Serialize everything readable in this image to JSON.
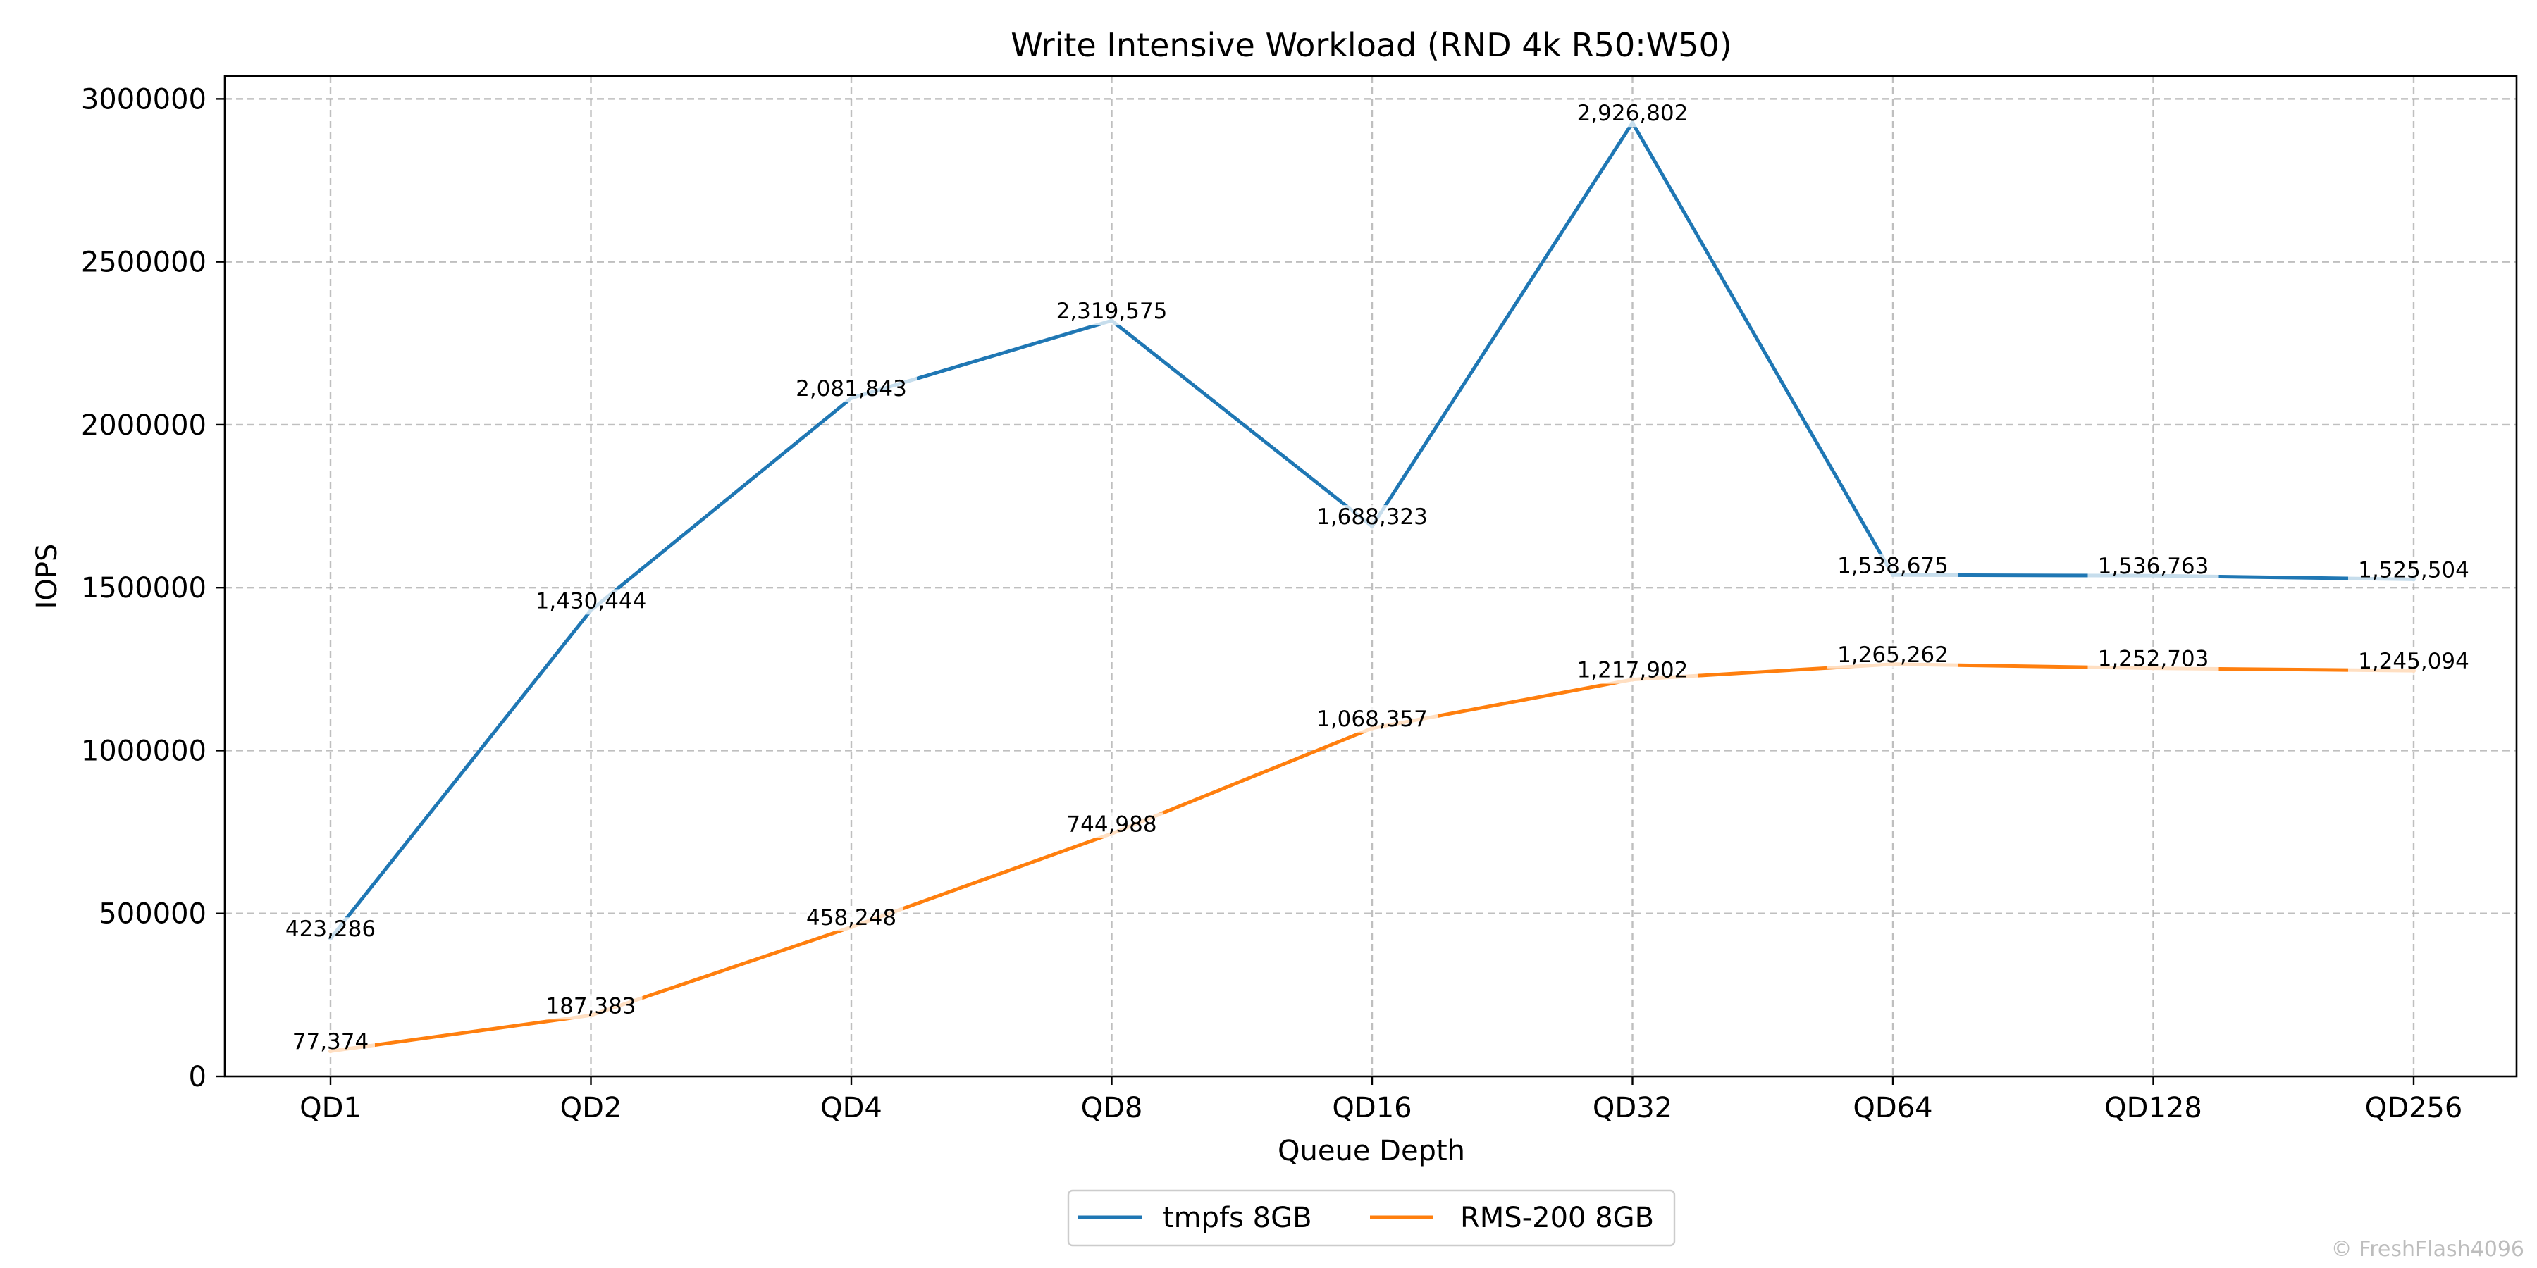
{
  "chart_data": {
    "type": "line",
    "title": "Write Intensive Workload (RND 4k R50:W50)",
    "xlabel": "Queue Depth",
    "ylabel": "IOPS",
    "categories": [
      "QD1",
      "QD2",
      "QD4",
      "QD8",
      "QD16",
      "QD32",
      "QD64",
      "QD128",
      "QD256"
    ],
    "ylim": [
      0,
      3070000
    ],
    "yticks": [
      0,
      500000,
      1000000,
      1500000,
      2000000,
      2500000,
      3000000
    ],
    "ytick_labels": [
      "0",
      "500000",
      "1000000",
      "1500000",
      "2000000",
      "2500000",
      "3000000"
    ],
    "grid": true,
    "legend_position": "bottom-center",
    "series": [
      {
        "name": "tmpfs 8GB",
        "color": "#1f77b4",
        "values": [
          423286,
          1430444,
          2081843,
          2319575,
          1688323,
          2926802,
          1538675,
          1536763,
          1525504
        ],
        "labels": [
          "423,286",
          "1,430,444",
          "2,081,843",
          "2,319,575",
          "1,688,323",
          "2,926,802",
          "1,538,675",
          "1,536,763",
          "1,525,504"
        ]
      },
      {
        "name": "RMS-200 8GB",
        "color": "#ff7f0e",
        "values": [
          77374,
          187383,
          458248,
          744988,
          1068357,
          1217902,
          1265262,
          1252703,
          1245094
        ],
        "labels": [
          "77,374",
          "187,383",
          "458,248",
          "744,988",
          "1,068,357",
          "1,217,902",
          "1,265,262",
          "1,252,703",
          "1,245,094"
        ]
      }
    ]
  },
  "watermark": "© FreshFlash4096"
}
